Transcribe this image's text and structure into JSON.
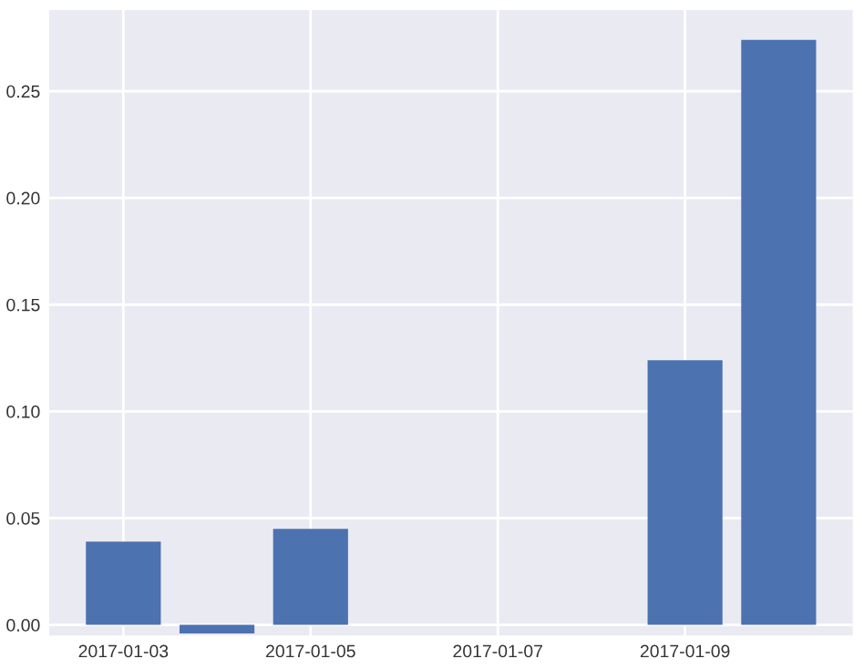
{
  "chart_data": {
    "type": "bar",
    "x": [
      "2017-01-03",
      "2017-01-04",
      "2017-01-05",
      "2017-01-09",
      "2017-01-10"
    ],
    "values": [
      0.039,
      -0.004,
      0.045,
      0.124,
      0.274
    ],
    "color": "#4c72b0",
    "xlim": [
      "2017-01-02T05:00",
      "2017-01-10T19:00"
    ],
    "xticks": [
      "2017-01-03",
      "2017-01-05",
      "2017-01-07",
      "2017-01-09"
    ],
    "ylim": [
      -0.005,
      0.288
    ],
    "yticks": [
      {
        "value": 0,
        "label": "0.00"
      },
      0.05,
      {
        "value": 0.1,
        "label": "0.10"
      },
      0.15,
      {
        "value": 0.2,
        "label": "0.20"
      },
      0.25
    ],
    "grid": true
  }
}
